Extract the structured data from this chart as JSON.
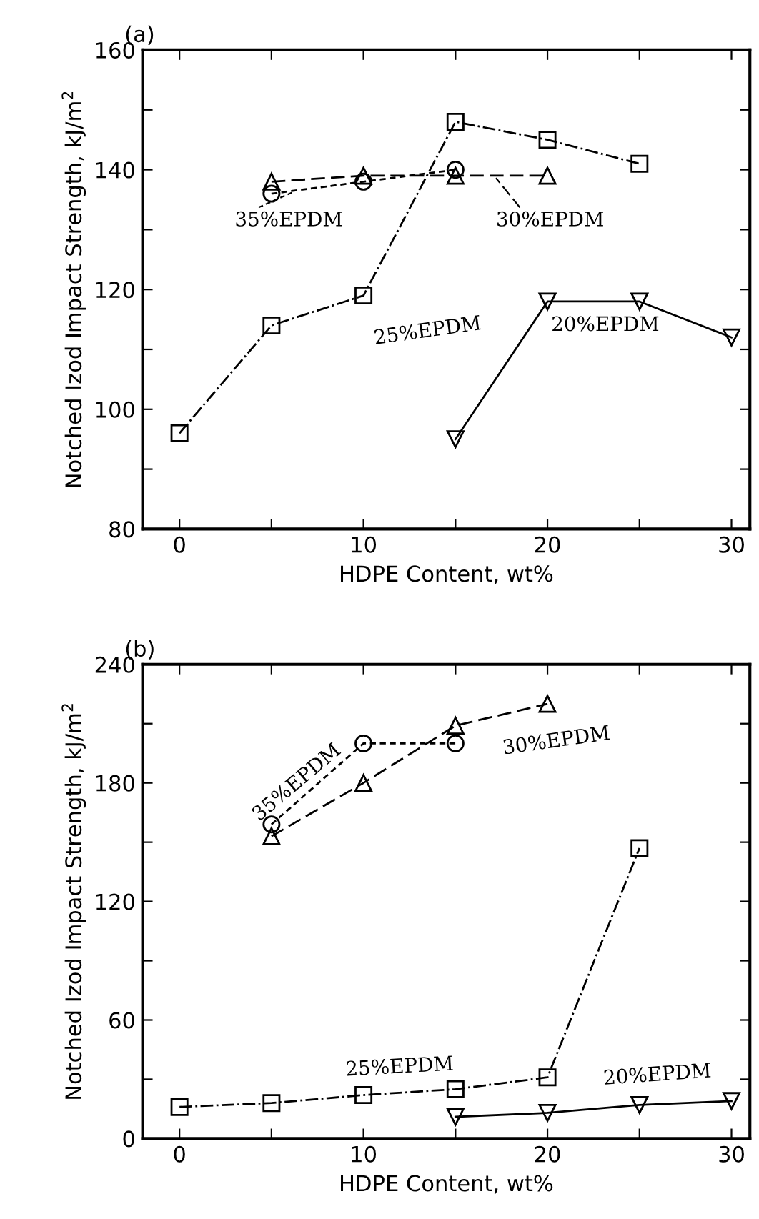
{
  "chart_data": [
    {
      "type": "line",
      "title": "(a)",
      "xlabel": "HDPE Content, wt%",
      "ylabel": "Notched Izod Impact Strength, kJ/m$^{2}$",
      "xlim": [
        -2,
        31
      ],
      "ylim": [
        80,
        160
      ],
      "legend": "top left",
      "xticks": [
        0,
        {
          "value": 5,
          "label": null
        },
        10,
        {
          "value": 15,
          "label": null
        },
        20,
        {
          "value": 25,
          "label": null
        },
        30
      ],
      "yticks": [
        80,
        {
          "value": 90,
          "label": null
        },
        100,
        {
          "value": 110,
          "label": null
        },
        120,
        {
          "value": 130,
          "label": null
        },
        140,
        {
          "value": 150,
          "label": null
        },
        160
      ],
      "grid": false,
      "series": [
        {
          "name": "25%EPDM",
          "color": "#000000",
          "marker": "square",
          "line_style": "dashdot",
          "x": [
            0,
            5,
            10,
            15,
            20,
            25
          ],
          "values": [
            96,
            114,
            119,
            148,
            145,
            141
          ]
        },
        {
          "name": "35%EPDM",
          "color": "#000000",
          "marker": "circle",
          "line_style": "dashed",
          "x": [
            5,
            10,
            15
          ],
          "values": [
            136,
            138,
            140
          ]
        },
        {
          "name": "30%EPDM",
          "color": "#000000",
          "marker": "triangle",
          "line_style": "dashed",
          "x": [
            5,
            10,
            15,
            20
          ],
          "values": [
            138,
            139,
            139,
            139
          ]
        },
        {
          "name": "20%EPDM",
          "color": "#000000",
          "marker": "triangle_down",
          "line_style": "solid",
          "x": [
            15,
            20,
            25,
            30
          ],
          "values": [
            95,
            118,
            118,
            112
          ]
        }
      ]
    },
    {
      "type": "line",
      "title": "(b)",
      "xlabel": "HDPE Content, wt%",
      "ylabel": "Notched Izod Impact Strength, kJ/m$^{2}$",
      "xlim": [
        -2,
        31
      ],
      "ylim": [
        0,
        240
      ],
      "legend": "bottom right",
      "xticks": [
        0,
        {
          "value": 5,
          "label": null
        },
        10,
        {
          "value": 15,
          "label": null
        },
        20,
        {
          "value": 25,
          "label": null
        },
        30
      ],
      "yticks": [
        0,
        {
          "value": 30,
          "label": null
        },
        60,
        {
          "value": 90,
          "label": null
        },
        120,
        {
          "value": 150,
          "label": null
        },
        180,
        {
          "value": 210,
          "label": null
        },
        240
      ],
      "grid": false,
      "series": [
        {
          "name": "25%EPDM",
          "color": "#000000",
          "marker": "square",
          "line_style": "dashdot",
          "x": [
            0,
            5,
            10,
            15,
            20,
            25
          ],
          "values": [
            16,
            18,
            22,
            25,
            31,
            147
          ]
        },
        {
          "name": "35%EPDM",
          "color": "#000000",
          "marker": "circle",
          "line_style": "dashed",
          "x": [
            5,
            10,
            15
          ],
          "values": [
            159,
            200,
            200
          ]
        },
        {
          "name": "30%EPDM",
          "color": "#000000",
          "marker": "triangle",
          "line_style": "dashed",
          "x": [
            5,
            10,
            15,
            20
          ],
          "values": [
            153,
            180,
            209,
            220
          ]
        },
        {
          "name": "20%EPDM",
          "color": "#000000",
          "marker": "triangle_down",
          "line_style": "solid",
          "x": [
            15,
            20,
            25,
            30
          ],
          "values": [
            11,
            13,
            17,
            19
          ]
        }
      ]
    }
  ]
}
